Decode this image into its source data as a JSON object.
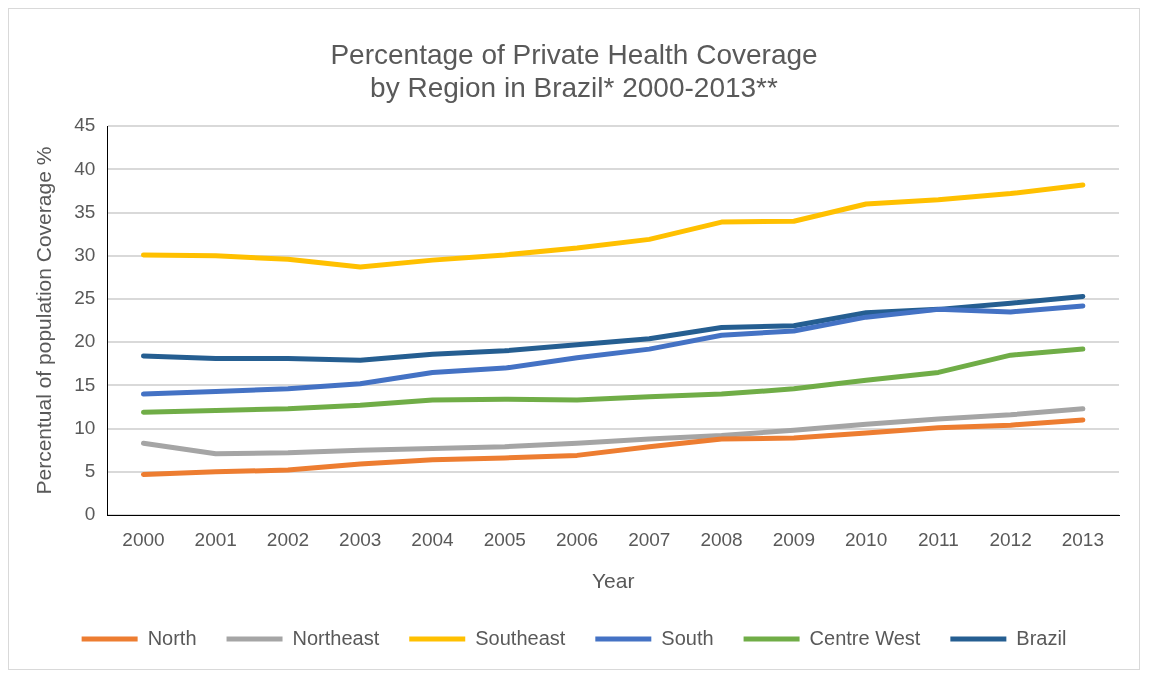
{
  "chart_data": {
    "type": "line",
    "title": "Percentage of Private Health Coverage\nby Region in Brazil* 2000-2013**",
    "xlabel": "Year",
    "ylabel": "Percentual of population Coverage %",
    "categories": [
      "2000",
      "2001",
      "2002",
      "2003",
      "2004",
      "2005",
      "2006",
      "2007",
      "2008",
      "2009",
      "2010",
      "2011",
      "2012",
      "2013"
    ],
    "ylim": [
      0,
      45
    ],
    "yticks": [
      0,
      5,
      10,
      15,
      20,
      25,
      30,
      35,
      40,
      45
    ],
    "grid": "y",
    "legend": "bottom",
    "marker": "none",
    "line_style": "solid",
    "series": [
      {
        "name": "North",
        "color": "#ed7d31",
        "values": [
          4.7,
          5.0,
          5.2,
          5.9,
          6.4,
          6.6,
          6.9,
          7.9,
          8.8,
          8.9,
          9.5,
          10.1,
          10.4,
          11.0
        ]
      },
      {
        "name": "Northeast",
        "color": "#a5a5a5",
        "values": [
          8.3,
          7.1,
          7.2,
          7.5,
          7.7,
          7.9,
          8.3,
          8.8,
          9.2,
          9.8,
          10.5,
          11.1,
          11.6,
          12.3
        ]
      },
      {
        "name": "Southeast",
        "color": "#ffc000",
        "values": [
          30.1,
          30.0,
          29.6,
          28.7,
          29.5,
          30.1,
          30.9,
          31.9,
          33.9,
          34.0,
          36.0,
          36.5,
          37.2,
          38.2
        ]
      },
      {
        "name": "South",
        "color": "#4472c4",
        "values": [
          14.0,
          14.3,
          14.6,
          15.2,
          16.5,
          17.0,
          18.2,
          19.2,
          20.8,
          21.3,
          22.9,
          23.8,
          23.5,
          24.2
        ]
      },
      {
        "name": "Centre West",
        "color": "#70ad47",
        "values": [
          11.9,
          12.1,
          12.3,
          12.7,
          13.3,
          13.4,
          13.3,
          13.7,
          14.0,
          14.6,
          15.6,
          16.5,
          18.5,
          19.2
        ]
      },
      {
        "name": "Brazil",
        "color": "#255e91",
        "values": [
          18.4,
          18.1,
          18.1,
          17.9,
          18.6,
          19.0,
          19.7,
          20.4,
          21.7,
          21.9,
          23.4,
          23.8,
          24.5,
          25.3
        ]
      }
    ]
  }
}
